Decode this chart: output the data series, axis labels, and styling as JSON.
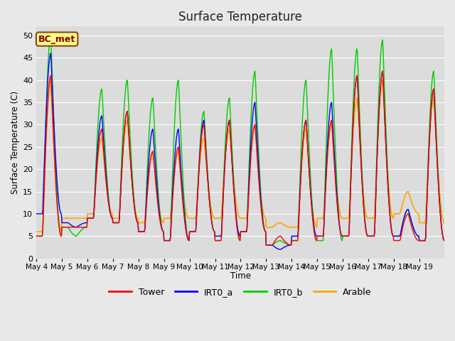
{
  "title": "Surface Temperature",
  "ylabel": "Surface Temperature (C)",
  "xlabel": "Time",
  "annotation": "BC_met",
  "ylim": [
    0,
    52
  ],
  "yticks": [
    0,
    5,
    10,
    15,
    20,
    25,
    30,
    35,
    40,
    45,
    50
  ],
  "x_tick_labels": [
    "May 4",
    "May 5",
    "May 6",
    "May 7",
    "May 8",
    "May 9",
    "May 10",
    "May 11",
    "May 12",
    "May 13",
    "May 14",
    "May 15",
    "May 16",
    "May 17",
    "May 18",
    "May 19"
  ],
  "bg_color": "#dcdcdc",
  "grid_color": "#ffffff",
  "fig_bg": "#e8e8e8",
  "series": {
    "Tower": {
      "color": "#ff0000",
      "lw": 1.0,
      "zorder": 4
    },
    "IRT0_a": {
      "color": "#0000ff",
      "lw": 1.0,
      "zorder": 3
    },
    "IRT0_b": {
      "color": "#00cc00",
      "lw": 1.0,
      "zorder": 2
    },
    "Arable": {
      "color": "#ffa500",
      "lw": 1.2,
      "zorder": 1
    }
  },
  "n_days": 16,
  "pts_per_day": 48,
  "daily_peaks_tower": [
    41,
    7,
    29,
    33,
    24,
    25,
    30,
    31,
    30,
    5,
    31,
    31,
    41,
    42,
    10,
    38
  ],
  "daily_peaks_irt0a": [
    46,
    7,
    32,
    33,
    29,
    29,
    31,
    31,
    35,
    2,
    31,
    35,
    41,
    42,
    11,
    38
  ],
  "daily_peaks_irt0b": [
    50,
    5,
    38,
    40,
    36,
    40,
    33,
    36,
    42,
    4,
    40,
    47,
    47,
    49,
    11,
    42
  ],
  "daily_peaks_arable": [
    40,
    9,
    27,
    31,
    24,
    24,
    27,
    29,
    30,
    8,
    29,
    30,
    36,
    40,
    15,
    36
  ],
  "daily_mins_tower": [
    5,
    7,
    9,
    8,
    6,
    4,
    6,
    4,
    6,
    3,
    4,
    5,
    5,
    5,
    4,
    4
  ],
  "daily_mins_irt0a": [
    10,
    8,
    9,
    8,
    6,
    4,
    6,
    5,
    6,
    3,
    5,
    5,
    5,
    5,
    5,
    4
  ],
  "daily_mins_irt0b": [
    5,
    7,
    9,
    8,
    6,
    4,
    6,
    4,
    6,
    3,
    4,
    4,
    5,
    5,
    5,
    4
  ],
  "daily_mins_arable": [
    6,
    9,
    10,
    9,
    8,
    9,
    9,
    9,
    9,
    7,
    7,
    9,
    9,
    9,
    10,
    8
  ]
}
